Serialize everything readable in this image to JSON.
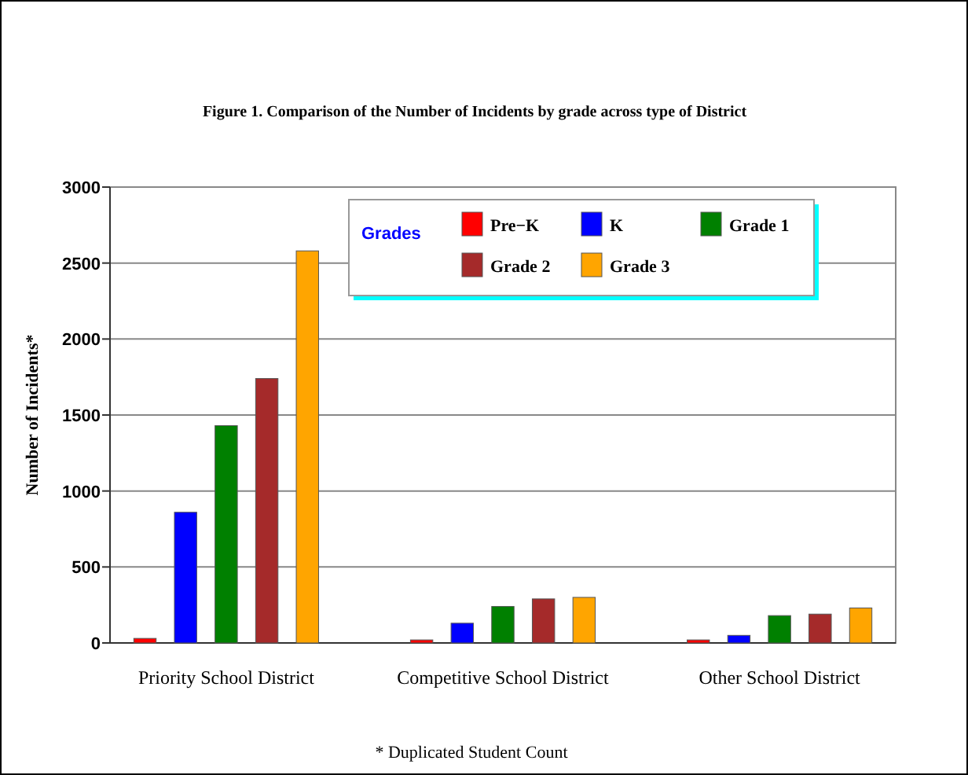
{
  "chart_data": {
    "type": "bar",
    "title": "Figure 1.  Comparison of the Number of Incidents by grade across type of District",
    "ylabel": "Number of Incidents*",
    "categories": [
      "Priority School District",
      "Competitive School District",
      "Other School District"
    ],
    "series": [
      {
        "name": "Pre−K",
        "color": "#ff0000",
        "values": [
          30,
          20,
          20
        ]
      },
      {
        "name": "K",
        "color": "#0000ff",
        "values": [
          860,
          130,
          50
        ]
      },
      {
        "name": "Grade 1",
        "color": "#008000",
        "values": [
          1430,
          240,
          180
        ]
      },
      {
        "name": "Grade 2",
        "color": "#a52a2a",
        "values": [
          1740,
          290,
          190
        ]
      },
      {
        "name": "Grade 3",
        "color": "#ffa500",
        "values": [
          2580,
          300,
          230
        ]
      }
    ],
    "ylim": [
      0,
      3000
    ],
    "yticks": [
      0,
      500,
      1000,
      1500,
      2000,
      2500,
      3000
    ],
    "grid": "y",
    "legend": "top right",
    "legend_title": "Grades",
    "annotations": [
      "* Duplicated Student Count"
    ]
  }
}
